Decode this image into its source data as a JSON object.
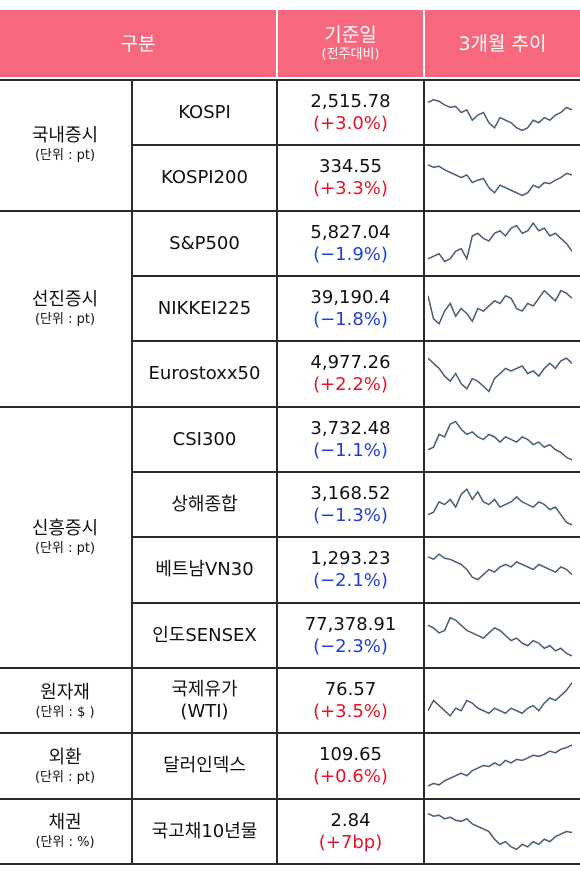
{
  "header": {
    "col1": "구분",
    "col2_title": "기준일",
    "col2_sub": "(전주대비)",
    "col3": "3개월 추이"
  },
  "colors": {
    "header_bg": "#f7687f",
    "up": "#e3142a",
    "down": "#1f3fd6",
    "spark": "#4a5a72"
  },
  "groups": [
    {
      "name": "국내증시",
      "unit": "(단위 : pt)"
    },
    {
      "name": "선진증시",
      "unit": "(단위 : pt)"
    },
    {
      "name": "신흥증시",
      "unit": "(단위 : pt)"
    },
    {
      "name": "원자재",
      "unit": "(단위 : $ )"
    },
    {
      "name": "외환",
      "unit": "(단위 : pt)"
    },
    {
      "name": "채권",
      "unit": "(단위 : %)"
    }
  ],
  "rows": [
    {
      "name": "KOSPI",
      "value": "2,515.78",
      "change": "(+3.0%)",
      "dir": "up"
    },
    {
      "name": "KOSPI200",
      "value": "334.55",
      "change": "(+3.3%)",
      "dir": "up"
    },
    {
      "name": "S&P500",
      "value": "5,827.04",
      "change": "(−1.9%)",
      "dir": "down"
    },
    {
      "name": "NIKKEI225",
      "value": "39,190.4",
      "change": "(−1.8%)",
      "dir": "down"
    },
    {
      "name": "Eurostoxx50",
      "value": "4,977.26",
      "change": "(+2.2%)",
      "dir": "up"
    },
    {
      "name": "CSI300",
      "value": "3,732.48",
      "change": "(−1.1%)",
      "dir": "down"
    },
    {
      "name": "상해종합",
      "value": "3,168.52",
      "change": "(−1.3%)",
      "dir": "down"
    },
    {
      "name": "베트남VN30",
      "value": "1,293.23",
      "change": "(−2.1%)",
      "dir": "down"
    },
    {
      "name": "인도SENSEX",
      "value": "77,378.91",
      "change": "(−2.3%)",
      "dir": "down"
    },
    {
      "name": "국제유가\n(WTI)",
      "value": "76.57",
      "change": "(+3.5%)",
      "dir": "up"
    },
    {
      "name": "달러인덱스",
      "value": "109.65",
      "change": "(+0.6%)",
      "dir": "up"
    },
    {
      "name": "국고채10년물",
      "value": "2.84",
      "change": "(+7bp)",
      "dir": "up"
    }
  ],
  "sparklines": [
    [
      0.7,
      0.75,
      0.72,
      0.65,
      0.6,
      0.62,
      0.5,
      0.55,
      0.35,
      0.45,
      0.5,
      0.3,
      0.2,
      0.4,
      0.35,
      0.3,
      0.2,
      0.15,
      0.2,
      0.35,
      0.3,
      0.4,
      0.35,
      0.45,
      0.5,
      0.6,
      0.55
    ],
    [
      0.75,
      0.7,
      0.72,
      0.65,
      0.6,
      0.55,
      0.5,
      0.55,
      0.4,
      0.45,
      0.48,
      0.3,
      0.2,
      0.35,
      0.3,
      0.25,
      0.2,
      0.15,
      0.2,
      0.35,
      0.3,
      0.4,
      0.38,
      0.45,
      0.5,
      0.58,
      0.55
    ],
    [
      0.2,
      0.25,
      0.3,
      0.15,
      0.2,
      0.35,
      0.4,
      0.2,
      0.65,
      0.7,
      0.6,
      0.55,
      0.7,
      0.75,
      0.65,
      0.8,
      0.85,
      0.7,
      0.75,
      0.9,
      0.75,
      0.8,
      0.65,
      0.7,
      0.6,
      0.5,
      0.35
    ],
    [
      0.75,
      0.3,
      0.2,
      0.45,
      0.6,
      0.35,
      0.5,
      0.4,
      0.25,
      0.5,
      0.45,
      0.55,
      0.65,
      0.6,
      0.75,
      0.7,
      0.5,
      0.45,
      0.6,
      0.55,
      0.7,
      0.85,
      0.75,
      0.65,
      0.85,
      0.8,
      0.7
    ],
    [
      0.8,
      0.7,
      0.6,
      0.45,
      0.35,
      0.5,
      0.3,
      0.2,
      0.4,
      0.35,
      0.25,
      0.15,
      0.4,
      0.5,
      0.6,
      0.55,
      0.6,
      0.65,
      0.5,
      0.55,
      0.45,
      0.6,
      0.7,
      0.6,
      0.75,
      0.8,
      0.7
    ],
    [
      0.3,
      0.35,
      0.6,
      0.55,
      0.8,
      0.85,
      0.7,
      0.6,
      0.65,
      0.55,
      0.5,
      0.6,
      0.55,
      0.45,
      0.55,
      0.5,
      0.45,
      0.55,
      0.5,
      0.4,
      0.45,
      0.35,
      0.4,
      0.3,
      0.25,
      0.15,
      0.1
    ],
    [
      0.3,
      0.35,
      0.55,
      0.5,
      0.6,
      0.45,
      0.7,
      0.8,
      0.6,
      0.75,
      0.55,
      0.5,
      0.6,
      0.45,
      0.5,
      0.55,
      0.65,
      0.55,
      0.5,
      0.45,
      0.55,
      0.5,
      0.4,
      0.45,
      0.3,
      0.15,
      0.1
    ],
    [
      0.75,
      0.7,
      0.8,
      0.72,
      0.7,
      0.65,
      0.6,
      0.5,
      0.35,
      0.3,
      0.4,
      0.5,
      0.45,
      0.55,
      0.6,
      0.55,
      0.65,
      0.6,
      0.55,
      0.5,
      0.6,
      0.55,
      0.5,
      0.45,
      0.55,
      0.5,
      0.4
    ],
    [
      0.7,
      0.65,
      0.55,
      0.6,
      0.85,
      0.8,
      0.7,
      0.6,
      0.55,
      0.5,
      0.45,
      0.55,
      0.65,
      0.6,
      0.5,
      0.4,
      0.45,
      0.35,
      0.3,
      0.4,
      0.35,
      0.25,
      0.3,
      0.2,
      0.25,
      0.15,
      0.1
    ],
    [
      0.3,
      0.5,
      0.4,
      0.3,
      0.2,
      0.35,
      0.3,
      0.5,
      0.45,
      0.35,
      0.3,
      0.25,
      0.35,
      0.3,
      0.25,
      0.35,
      0.3,
      0.25,
      0.35,
      0.4,
      0.3,
      0.45,
      0.55,
      0.5,
      0.6,
      0.7,
      0.85
    ],
    [
      0.1,
      0.15,
      0.12,
      0.2,
      0.25,
      0.3,
      0.35,
      0.3,
      0.4,
      0.45,
      0.5,
      0.48,
      0.55,
      0.5,
      0.6,
      0.55,
      0.62,
      0.6,
      0.65,
      0.7,
      0.68,
      0.72,
      0.78,
      0.75,
      0.82,
      0.85,
      0.9
    ],
    [
      0.85,
      0.8,
      0.82,
      0.75,
      0.78,
      0.72,
      0.7,
      0.75,
      0.65,
      0.6,
      0.55,
      0.5,
      0.35,
      0.25,
      0.3,
      0.2,
      0.15,
      0.25,
      0.2,
      0.3,
      0.25,
      0.35,
      0.3,
      0.4,
      0.45,
      0.5,
      0.48
    ]
  ]
}
